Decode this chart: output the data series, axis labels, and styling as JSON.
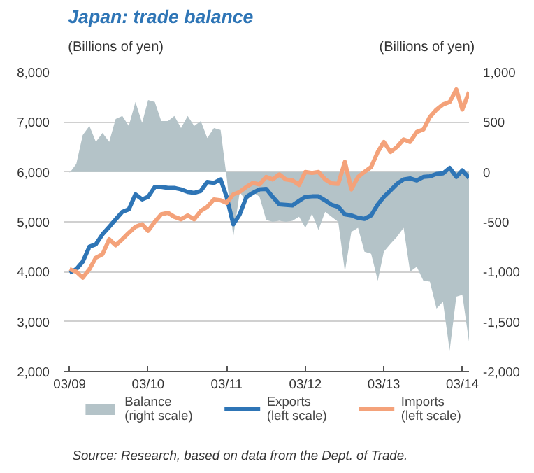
{
  "chart_data": {
    "type": "line",
    "title": "Japan: trade balance",
    "ylabel": "(Billions of yen)",
    "y2label": "(Billions of yen)",
    "x": [
      "2009-03",
      "2009-04",
      "2009-05",
      "2009-06",
      "2009-07",
      "2009-08",
      "2009-09",
      "2009-10",
      "2009-11",
      "2009-12",
      "2010-01",
      "2010-02",
      "2010-03",
      "2010-04",
      "2010-05",
      "2010-06",
      "2010-07",
      "2010-08",
      "2010-09",
      "2010-10",
      "2010-11",
      "2010-12",
      "2011-01",
      "2011-02",
      "2011-03",
      "2011-04",
      "2011-05",
      "2011-06",
      "2011-07",
      "2011-08",
      "2011-09",
      "2011-10",
      "2011-11",
      "2011-12",
      "2012-01",
      "2012-02",
      "2012-03",
      "2012-04",
      "2012-05",
      "2012-06",
      "2012-07",
      "2012-08",
      "2012-09",
      "2012-10",
      "2012-11",
      "2012-12",
      "2013-01",
      "2013-02",
      "2013-03",
      "2013-04",
      "2013-05",
      "2013-06",
      "2013-07",
      "2013-08",
      "2013-09",
      "2013-10",
      "2013-11",
      "2013-12",
      "2014-01",
      "2014-02",
      "2014-03",
      "2014-04"
    ],
    "series": [
      {
        "name": "Balance\n(right scale)",
        "type": "area",
        "axis": "y2",
        "color": "#b4c3c8",
        "values": [
          -10,
          80,
          370,
          460,
          300,
          390,
          300,
          530,
          560,
          460,
          700,
          490,
          720,
          700,
          510,
          510,
          560,
          440,
          560,
          460,
          510,
          340,
          440,
          420,
          -50,
          -650,
          -200,
          -300,
          -200,
          -250,
          -480,
          -500,
          -490,
          -500,
          -490,
          -450,
          -560,
          -420,
          -580,
          -400,
          -450,
          -500,
          -1000,
          -600,
          -560,
          -800,
          -820,
          -1090,
          -800,
          -720,
          -650,
          -560,
          -1000,
          -950,
          -1090,
          -1100,
          -1370,
          -1300,
          -1790,
          -1250,
          -1230,
          -1700
        ]
      },
      {
        "name": "Exports\n(left scale)",
        "color": "#2e75b6",
        "values": [
          3980,
          4050,
          4200,
          4500,
          4550,
          4750,
          4900,
          5050,
          5200,
          5250,
          5550,
          5450,
          5500,
          5700,
          5700,
          5680,
          5680,
          5650,
          5600,
          5580,
          5620,
          5800,
          5780,
          5850,
          5500,
          4950,
          5150,
          5500,
          5580,
          5650,
          5660,
          5500,
          5350,
          5340,
          5330,
          5420,
          5500,
          5510,
          5510,
          5430,
          5340,
          5300,
          5150,
          5130,
          5080,
          5060,
          5130,
          5350,
          5500,
          5630,
          5760,
          5850,
          5870,
          5830,
          5900,
          5910,
          5960,
          5970,
          6080,
          5900,
          6030,
          5880
        ]
      },
      {
        "name": "Imports\n(left scale)",
        "color": "#f4a27a",
        "values": [
          4050,
          4000,
          3880,
          4050,
          4280,
          4350,
          4650,
          4530,
          4650,
          4780,
          4900,
          4950,
          4820,
          5000,
          5150,
          5180,
          5100,
          5050,
          5130,
          5050,
          5220,
          5300,
          5450,
          5430,
          5380,
          5550,
          5600,
          5700,
          5780,
          5750,
          5900,
          5850,
          5950,
          5850,
          5830,
          5740,
          6000,
          5980,
          6000,
          5850,
          5770,
          5760,
          6200,
          5650,
          5900,
          6000,
          6100,
          6400,
          6600,
          6400,
          6500,
          6650,
          6600,
          6800,
          6850,
          7100,
          7250,
          7350,
          7400,
          7650,
          7250,
          7600
        ]
      }
    ],
    "xlim": [
      "2009-02",
      "2014-04"
    ],
    "xticks": [
      {
        "value": "2009-03",
        "label": "03/09"
      },
      {
        "value": "2010-03",
        "label": "03/10"
      },
      {
        "value": "2011-03",
        "label": "03/11"
      },
      {
        "value": "2012-03",
        "label": "03/12"
      },
      {
        "value": "2013-03",
        "label": "03/13"
      },
      {
        "value": "2014-03",
        "label": "03/14"
      }
    ],
    "ylim": [
      2000,
      8000
    ],
    "yticks": [
      {
        "value": 2000,
        "label": "2,000"
      },
      {
        "value": 3000,
        "label": "3,000"
      },
      {
        "value": 4000,
        "label": "4,000"
      },
      {
        "value": 5000,
        "label": "5,000"
      },
      {
        "value": 6000,
        "label": "6,000"
      },
      {
        "value": 7000,
        "label": "7,000"
      },
      {
        "value": 8000,
        "label": "8,000"
      }
    ],
    "y2lim": [
      -2000,
      1000
    ],
    "y2ticks": [
      {
        "value": -2000,
        "label": "-2,000"
      },
      {
        "value": -1500,
        "label": "-1,500"
      },
      {
        "value": -1000,
        "label": "-1,000"
      },
      -500,
      0,
      500,
      {
        "value": 1000,
        "label": "1,000"
      }
    ],
    "grid": "y",
    "legend": "bottom",
    "line_style": "solid",
    "annotations": [
      "Source: Research, based on data from the Dept. of Trade."
    ]
  }
}
